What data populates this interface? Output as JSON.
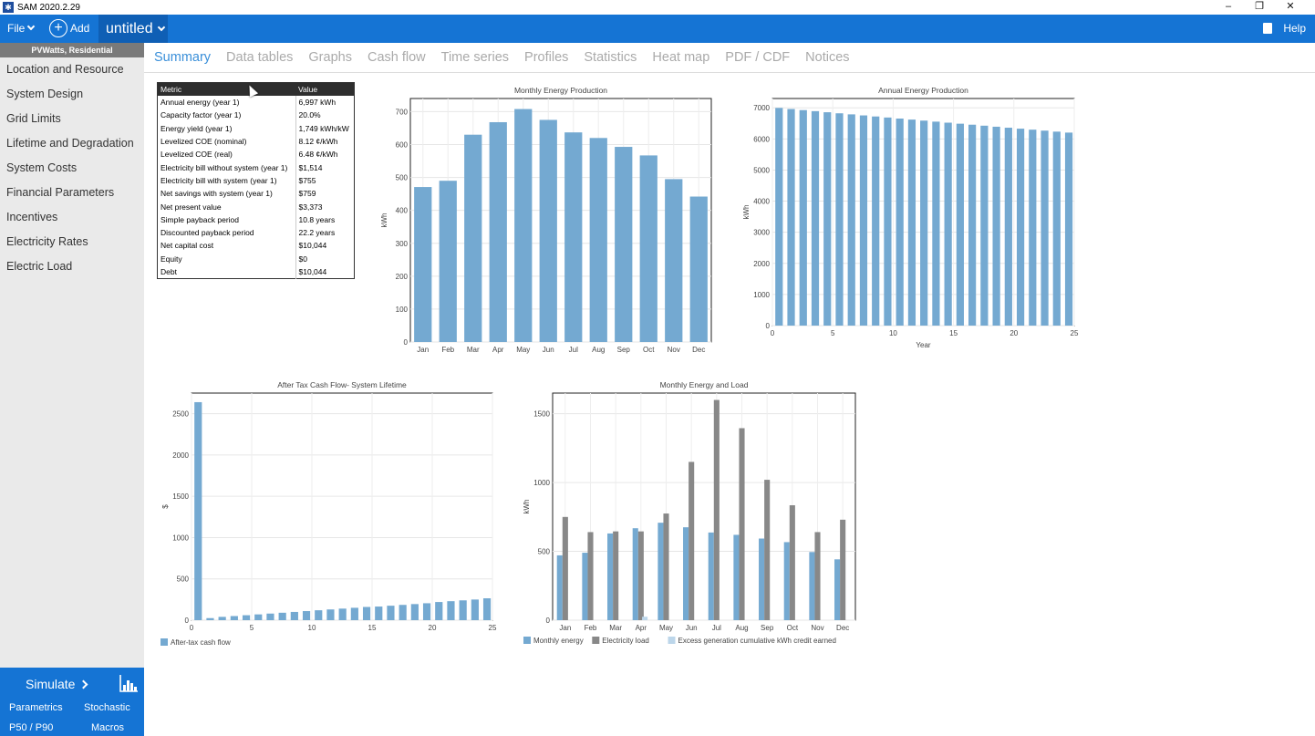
{
  "window": {
    "title": "SAM 2020.2.29",
    "controls": [
      "–",
      "❐",
      "✕"
    ]
  },
  "toolbar": {
    "file_label": "File",
    "add_label": "Add",
    "case_name": "untitled",
    "help_label": "Help"
  },
  "sidebar": {
    "configuration": "PVWatts, Residential",
    "items": [
      "Location and Resource",
      "System Design",
      "Grid Limits",
      "Lifetime and Degradation",
      "System Costs",
      "Financial Parameters",
      "Incentives",
      "Electricity Rates",
      "Electric Load"
    ],
    "simulate_label": "Simulate",
    "parametrics_label": "Parametrics",
    "stochastic_label": "Stochastic",
    "p50_label": "P50 / P90",
    "macros_label": "Macros"
  },
  "tabs": [
    "Summary",
    "Data tables",
    "Graphs",
    "Cash flow",
    "Time series",
    "Profiles",
    "Statistics",
    "Heat map",
    "PDF / CDF",
    "Notices"
  ],
  "active_tab": "Summary",
  "metrics": {
    "headers": [
      "Metric",
      "Value"
    ],
    "rows": [
      [
        "Annual energy (year 1)",
        "6,997 kWh"
      ],
      [
        "Capacity factor (year 1)",
        "20.0%"
      ],
      [
        "Energy yield (year 1)",
        "1,749 kWh/kW"
      ],
      [
        "Levelized COE (nominal)",
        "8.12 ¢/kWh"
      ],
      [
        "Levelized COE (real)",
        "6.48 ¢/kWh"
      ],
      [
        "Electricity bill without system (year 1)",
        "$1,514"
      ],
      [
        "Electricity bill with system (year 1)",
        "$755"
      ],
      [
        "Net savings with system (year 1)",
        "$759"
      ],
      [
        "Net present value",
        "$3,373"
      ],
      [
        "Simple payback period",
        "10.8 years"
      ],
      [
        "Discounted payback period",
        "22.2 years"
      ],
      [
        "Net capital cost",
        "$10,044"
      ],
      [
        "Equity",
        "$0"
      ],
      [
        "Debt",
        "$10,044"
      ]
    ]
  },
  "colors": {
    "blue": "#1574d4",
    "bar_blue": "#74a9d1",
    "bar_gray": "#888888",
    "bar_light": "#bcd6ea"
  },
  "chart_data": [
    {
      "type": "bar",
      "title": "Monthly Energy Production",
      "ylabel": "kWh",
      "xlabel": "",
      "categories": [
        "Jan",
        "Feb",
        "Mar",
        "Apr",
        "May",
        "Jun",
        "Jul",
        "Aug",
        "Sep",
        "Oct",
        "Nov",
        "Dec"
      ],
      "values": [
        471,
        490,
        630,
        668,
        708,
        675,
        637,
        620,
        593,
        567,
        495,
        442
      ],
      "ylim": [
        0,
        740
      ],
      "yticks": [
        0,
        100,
        200,
        300,
        400,
        500,
        600,
        700
      ],
      "grid": true
    },
    {
      "type": "bar",
      "title": "Annual Energy Production",
      "ylabel": "kWh",
      "xlabel": "Year",
      "x": [
        1,
        2,
        3,
        4,
        5,
        6,
        7,
        8,
        9,
        10,
        11,
        12,
        13,
        14,
        15,
        16,
        17,
        18,
        19,
        20,
        21,
        22,
        23,
        24,
        25
      ],
      "values": [
        6997,
        6962,
        6927,
        6893,
        6858,
        6824,
        6790,
        6756,
        6722,
        6689,
        6655,
        6622,
        6589,
        6556,
        6523,
        6490,
        6458,
        6426,
        6393,
        6361,
        6330,
        6298,
        6267,
        6235,
        6204
      ],
      "xlim": [
        0,
        25
      ],
      "xticks": [
        0,
        5,
        10,
        15,
        20,
        25
      ],
      "ylim": [
        0,
        7300
      ],
      "yticks": [
        0,
        1000,
        2000,
        3000,
        4000,
        5000,
        6000,
        7000
      ],
      "grid": true
    },
    {
      "type": "bar",
      "title": "After Tax Cash Flow- System Lifetime",
      "ylabel": "$",
      "xlabel": "",
      "x": [
        1,
        2,
        3,
        4,
        5,
        6,
        7,
        8,
        9,
        10,
        11,
        12,
        13,
        14,
        15,
        16,
        17,
        18,
        19,
        20,
        21,
        22,
        23,
        24,
        25
      ],
      "values": [
        2640,
        25,
        40,
        50,
        60,
        70,
        80,
        90,
        100,
        110,
        120,
        130,
        140,
        150,
        160,
        165,
        175,
        185,
        195,
        205,
        220,
        230,
        240,
        250,
        265
      ],
      "xlim": [
        0,
        25
      ],
      "xticks": [
        0,
        5,
        10,
        15,
        20,
        25
      ],
      "ylim": [
        0,
        2750
      ],
      "yticks": [
        0,
        500,
        1000,
        1500,
        2000,
        2500
      ],
      "legend": [
        "After-tax cash flow"
      ],
      "legend_position": "bottom-left",
      "grid": true
    },
    {
      "type": "bar",
      "title": "Monthly Energy and Load",
      "ylabel": "kWh",
      "xlabel": "",
      "categories": [
        "Jan",
        "Feb",
        "Mar",
        "Apr",
        "May",
        "Jun",
        "Jul",
        "Aug",
        "Sep",
        "Oct",
        "Nov",
        "Dec"
      ],
      "series": [
        {
          "name": "Monthly energy",
          "values": [
            471,
            490,
            630,
            668,
            708,
            675,
            637,
            620,
            593,
            567,
            495,
            442
          ]
        },
        {
          "name": "Electricity load",
          "values": [
            750,
            640,
            645,
            645,
            775,
            1150,
            1600,
            1395,
            1020,
            835,
            640,
            730
          ]
        },
        {
          "name": "Excess generation cumulative kWh credit earned",
          "values": [
            0,
            0,
            0,
            25,
            0,
            0,
            0,
            0,
            0,
            0,
            0,
            0
          ]
        }
      ],
      "ylim": [
        0,
        1650
      ],
      "yticks": [
        0,
        500,
        1000,
        1500
      ],
      "legend_position": "bottom-left",
      "grid": true
    }
  ]
}
